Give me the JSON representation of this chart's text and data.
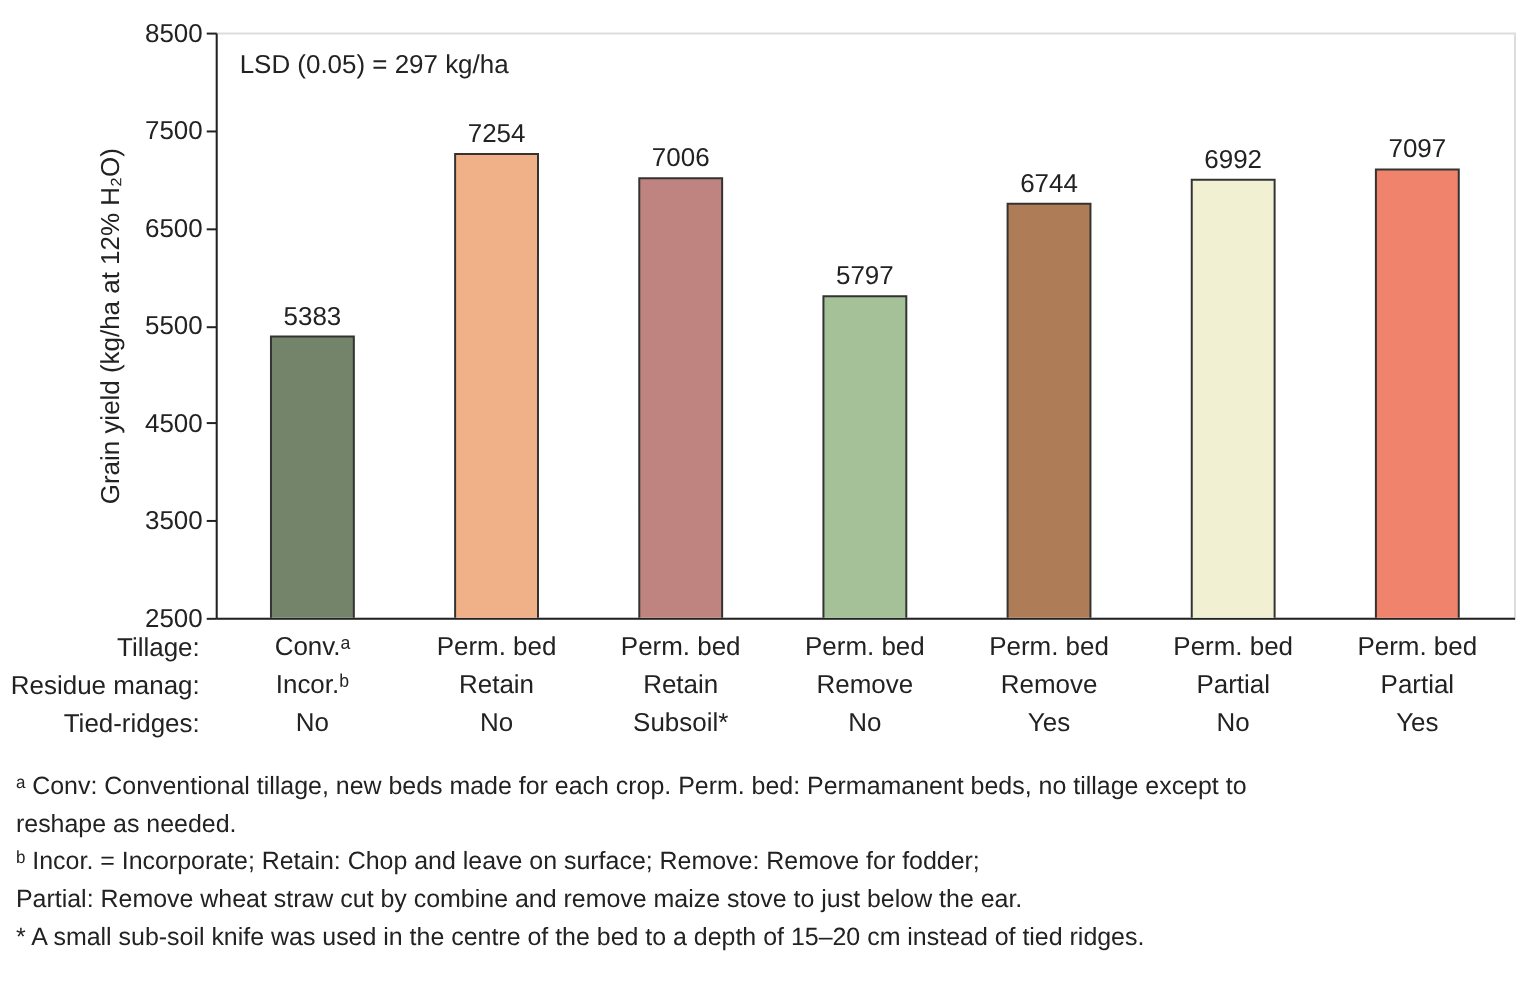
{
  "chart_data": {
    "type": "bar",
    "categories": [
      "Conv.ᵃ\nIncor.ᵇ\nNo",
      "Perm. bed\nRetain\nNo",
      "Perm. bed\nRetain\nSubsoil*",
      "Perm. bed\nRemove\nNo",
      "Perm. bed\nRemove\nYes",
      "Perm. bed\nPartial\nNo",
      "Perm. bed\nPartial\nYes"
    ],
    "values": [
      5383,
      7254,
      7006,
      5797,
      6744,
      6992,
      7097
    ],
    "colors": [
      "#74846a",
      "#f0b088",
      "#c08480",
      "#a5c197",
      "#ae7d58",
      "#f2f0d2",
      "#ef836b"
    ],
    "ylabel": "Grain yield (kg/ha at 12% H₂O)",
    "ylim": [
      2500,
      8500
    ],
    "yticks": [
      2500,
      3500,
      4500,
      5500,
      6500,
      7500,
      8500
    ],
    "grid": false,
    "data_labels": true,
    "annotations": [
      "LSD (0.05) = 297 kg/ha",
      "Tillage:",
      "Residue manag:",
      "Tied-ridges:",
      "ᵃ Conv: Conventional tillage, new beds made for each crop. Perm. bed: Permamanent beds, no tillage except to",
      "   reshape as needed.",
      "ᵇ Incor. = Incorporate; Retain: Chop and leave on surface; Remove: Remove for fodder;",
      "   Partial: Remove wheat straw cut by combine and remove maize stove to just below the ear.",
      "* A small sub-soil knife was used in the centre of the bed to a depth of 15–20 cm instead of tied ridges."
    ]
  }
}
